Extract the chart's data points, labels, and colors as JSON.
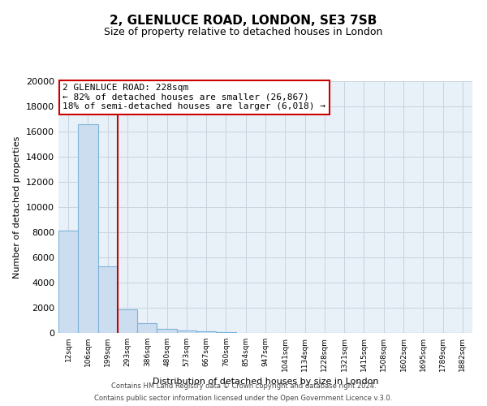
{
  "title": "2, GLENLUCE ROAD, LONDON, SE3 7SB",
  "subtitle": "Size of property relative to detached houses in London",
  "xlabel": "Distribution of detached houses by size in London",
  "ylabel": "Number of detached properties",
  "bin_labels": [
    "12sqm",
    "106sqm",
    "199sqm",
    "293sqm",
    "386sqm",
    "480sqm",
    "573sqm",
    "667sqm",
    "760sqm",
    "854sqm",
    "947sqm",
    "1041sqm",
    "1134sqm",
    "1228sqm",
    "1321sqm",
    "1415sqm",
    "1508sqm",
    "1602sqm",
    "1695sqm",
    "1789sqm",
    "1882sqm"
  ],
  "bar_heights": [
    8100,
    16600,
    5300,
    1850,
    800,
    300,
    175,
    110,
    70,
    0,
    0,
    0,
    0,
    0,
    0,
    0,
    0,
    0,
    0,
    0,
    0
  ],
  "bar_color": "#ccddf0",
  "bar_edge_color": "#7db4d8",
  "ylim": [
    0,
    20000
  ],
  "yticks": [
    0,
    2000,
    4000,
    6000,
    8000,
    10000,
    12000,
    14000,
    16000,
    18000,
    20000
  ],
  "vline_x_index": 2.5,
  "vline_color": "#cc0000",
  "annotation_title": "2 GLENLUCE ROAD: 228sqm",
  "annotation_line1": "← 82% of detached houses are smaller (26,867)",
  "annotation_line2": "18% of semi-detached houses are larger (6,018) →",
  "annotation_box_color": "#cc0000",
  "footer1": "Contains HM Land Registry data © Crown copyright and database right 2024.",
  "footer2": "Contains public sector information licensed under the Open Government Licence v.3.0.",
  "plot_bg_color": "#e8f0f8",
  "fig_bg_color": "#ffffff",
  "grid_color": "#c8d4e0"
}
